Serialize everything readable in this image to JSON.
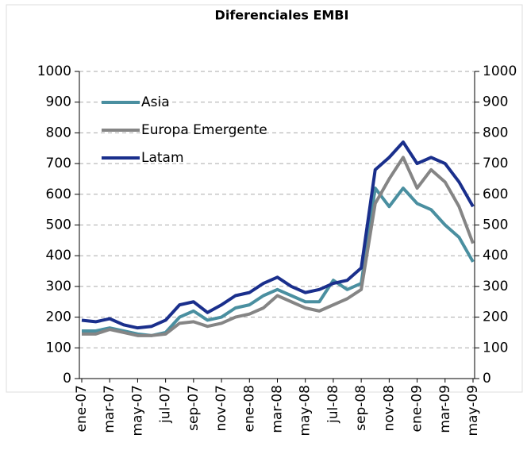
{
  "chart_data": {
    "type": "line",
    "title": "Diferenciales EMBI",
    "categories": [
      "ene-07",
      null,
      "mar-07",
      null,
      "may-07",
      null,
      "jul-07",
      null,
      "sep-07",
      null,
      "nov-07",
      null,
      "ene-08",
      null,
      "mar-08",
      null,
      "may-08",
      null,
      "jul-08",
      null,
      "sep-08",
      null,
      "nov-08",
      null,
      "ene-09",
      null,
      "mar-09",
      null,
      "may-09"
    ],
    "series": [
      {
        "name": "Asia",
        "color": "#4a8fa0",
        "values": [
          155,
          155,
          165,
          155,
          145,
          140,
          150,
          200,
          220,
          190,
          200,
          230,
          240,
          270,
          290,
          270,
          250,
          250,
          320,
          290,
          310,
          620,
          560,
          620,
          570,
          550,
          500,
          460,
          380
        ]
      },
      {
        "name": "Europa Emergente",
        "color": "#858585",
        "values": [
          145,
          145,
          160,
          150,
          140,
          140,
          145,
          180,
          185,
          170,
          180,
          200,
          210,
          230,
          270,
          250,
          230,
          220,
          240,
          260,
          290,
          570,
          650,
          720,
          620,
          680,
          640,
          560,
          440
        ]
      },
      {
        "name": "Latam",
        "color": "#1a2f8c",
        "values": [
          190,
          185,
          195,
          175,
          165,
          170,
          190,
          240,
          250,
          215,
          240,
          270,
          280,
          310,
          330,
          300,
          280,
          290,
          310,
          320,
          360,
          680,
          720,
          770,
          700,
          720,
          700,
          640,
          560
        ]
      }
    ],
    "ylim": [
      0,
      1000
    ],
    "yticks": [
      0,
      100,
      200,
      300,
      400,
      500,
      600,
      700,
      800,
      900,
      1000
    ],
    "y2lim": [
      0,
      1000
    ],
    "y2ticks": [
      0,
      100,
      200,
      300,
      400,
      500,
      600,
      700,
      800,
      900,
      1000
    ],
    "grid": true,
    "legend": "upper-left"
  }
}
